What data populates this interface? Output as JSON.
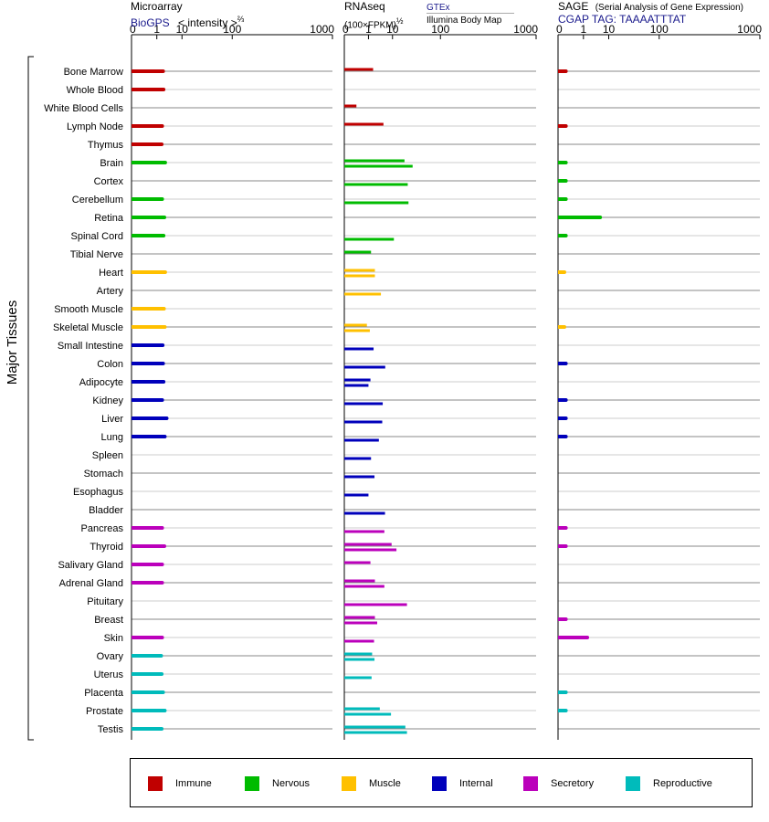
{
  "panels": {
    "microarray": {
      "title": "Microarray",
      "source": "BioGPS",
      "metric_prefix": "< intensity >",
      "metric_exp": "⅔"
    },
    "rnaseq": {
      "title": "RNAseq",
      "metric_prefix": "(100×FPKM)",
      "metric_exp": "½",
      "source_1": "GTEx",
      "source_2": "Illumina Body Map"
    },
    "sage": {
      "title": "SAGE",
      "subtitle": "(Serial Analysis of Gene Expression)",
      "tag": "CGAP TAG: TAAAATTTAT"
    }
  },
  "axis_labels": [
    "0",
    "1",
    "10",
    "100",
    "1000"
  ],
  "y_group_label": "Major Tissues",
  "colors": {
    "Immune": "#c00000",
    "Nervous": "#00bb00",
    "Muscle": "#ffc000",
    "Internal": "#0000bb",
    "Secretory": "#bb00bb",
    "Reproductive": "#00bbbb"
  },
  "legend": [
    {
      "label": "Immune",
      "color": "#c00000"
    },
    {
      "label": "Nervous",
      "color": "#00bb00"
    },
    {
      "label": "Muscle",
      "color": "#ffc000"
    },
    {
      "label": "Internal",
      "color": "#0000bb"
    },
    {
      "label": "Secretory",
      "color": "#bb00bb"
    },
    {
      "label": "Reproductive",
      "color": "#00bbbb"
    }
  ],
  "chart_data": {
    "type": "bar",
    "x_scale": "power (0–1000)",
    "categories": [
      "Bone Marrow",
      "Whole Blood",
      "White Blood Cells",
      "Lymph Node",
      "Thymus",
      "Brain",
      "Cortex",
      "Cerebellum",
      "Retina",
      "Spinal Cord",
      "Tibial Nerve",
      "Heart",
      "Artery",
      "Smooth Muscle",
      "Skeletal Muscle",
      "Small Intestine",
      "Colon",
      "Adipocyte",
      "Kidney",
      "Liver",
      "Lung",
      "Spleen",
      "Stomach",
      "Esophagus",
      "Bladder",
      "Pancreas",
      "Thyroid",
      "Salivary Gland",
      "Adrenal Gland",
      "Pituitary",
      "Breast",
      "Skin",
      "Ovary",
      "Uterus",
      "Placenta",
      "Prostate",
      "Testis"
    ],
    "groups": [
      "Immune",
      "Immune",
      "Immune",
      "Immune",
      "Immune",
      "Nervous",
      "Nervous",
      "Nervous",
      "Nervous",
      "Nervous",
      "Nervous",
      "Muscle",
      "Muscle",
      "Muscle",
      "Muscle",
      "Internal",
      "Internal",
      "Internal",
      "Internal",
      "Internal",
      "Internal",
      "Internal",
      "Internal",
      "Internal",
      "Internal",
      "Secretory",
      "Secretory",
      "Secretory",
      "Secretory",
      "Secretory",
      "Secretory",
      "Secretory",
      "Reproductive",
      "Reproductive",
      "Reproductive",
      "Reproductive",
      "Reproductive"
    ],
    "microarray": [
      2.1,
      2.2,
      null,
      1.9,
      1.8,
      2.6,
      null,
      1.9,
      2.4,
      2.2,
      null,
      2.6,
      null,
      2.3,
      2.5,
      2.0,
      2.1,
      2.2,
      1.9,
      3.0,
      2.5,
      null,
      null,
      null,
      null,
      1.9,
      2.4,
      1.9,
      1.9,
      null,
      null,
      1.9,
      1.7,
      1.8,
      2.1,
      2.5,
      1.8
    ],
    "rnaseq_gtex": [
      1.8,
      null,
      0.1,
      5.0,
      null,
      21,
      null,
      null,
      null,
      null,
      1.4,
      2.2,
      null,
      null,
      0.8,
      null,
      null,
      1.3,
      null,
      null,
      null,
      null,
      null,
      null,
      null,
      null,
      9.4,
      1.3,
      2.2,
      null,
      2.2,
      null,
      1.6,
      null,
      null,
      3.6,
      22
    ],
    "rnaseq_ibm": [
      null,
      null,
      null,
      null,
      null,
      32,
      25,
      26,
      null,
      11,
      null,
      2.2,
      4.0,
      null,
      1.2,
      1.9,
      5.8,
      1.0,
      4.7,
      4.5,
      3.3,
      1.4,
      2.1,
      1.0,
      5.7,
      5.4,
      13,
      null,
      5.4,
      24,
      2.8,
      2.0,
      2.1,
      1.5,
      null,
      9.0,
      24
    ],
    "sage": [
      0.02,
      null,
      null,
      0.02,
      null,
      0.02,
      0.02,
      0.02,
      5.4,
      0.02,
      null,
      0.01,
      null,
      null,
      0.01,
      null,
      0.02,
      null,
      0.02,
      0.02,
      0.02,
      null,
      null,
      null,
      null,
      0.02,
      0.02,
      null,
      null,
      null,
      0.02,
      1.6,
      null,
      null,
      0.02,
      0.02,
      null
    ]
  }
}
